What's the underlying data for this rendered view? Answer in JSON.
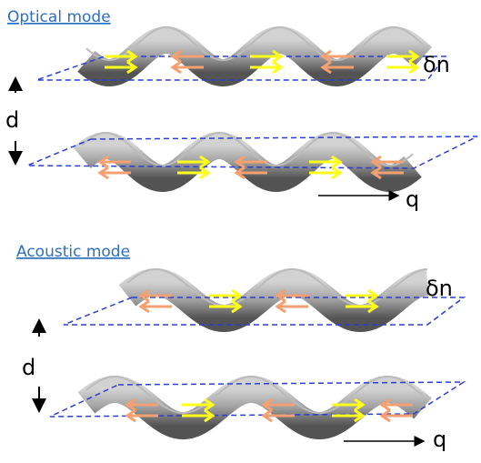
{
  "panels": [
    {
      "title": "Optical mode",
      "delta_label": "δn",
      "distance_label": "d",
      "wavevector_label": "q"
    },
    {
      "title": "Acoustic mode",
      "delta_label": "δn",
      "distance_label": "d",
      "wavevector_label": "q"
    }
  ]
}
